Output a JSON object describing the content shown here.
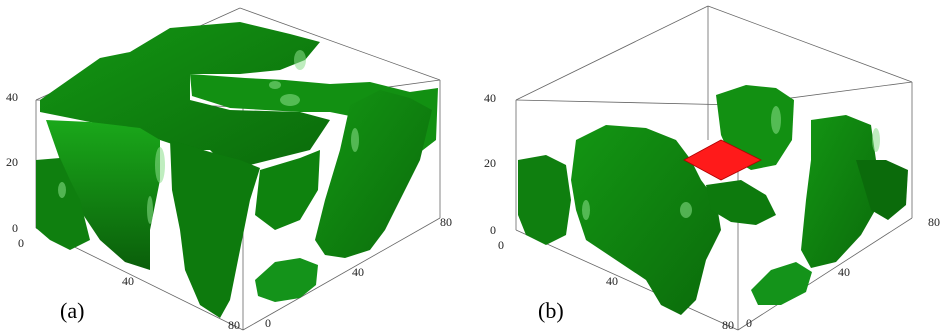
{
  "panels": [
    {
      "caption": "(a)",
      "z_ticks": [
        "0",
        "20",
        "40"
      ],
      "x_ticks": [
        "0",
        "40",
        "80"
      ],
      "y_ticks": [
        "0",
        "40",
        "80"
      ]
    },
    {
      "caption": "(b)",
      "z_ticks": [
        "0",
        "20",
        "40"
      ],
      "x_ticks": [
        "0",
        "40",
        "80"
      ],
      "y_ticks": [
        "0",
        "40",
        "80"
      ]
    }
  ],
  "colors": {
    "solid_dark": "#0b6b0b",
    "solid_mid": "#139613",
    "solid_light": "#2fbf2f",
    "highlight": "#8be08b",
    "marker": "#ff1a1a"
  }
}
